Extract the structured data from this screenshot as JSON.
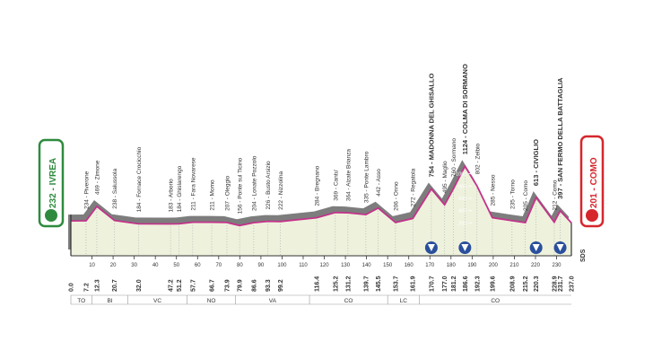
{
  "chart_data": {
    "type": "profile",
    "start_label": "232 - IVREA",
    "finish_label": "201 - COMO",
    "sds_label": "SDS",
    "x": [
      0,
      7.2,
      12.3,
      20.7,
      32,
      47.2,
      51.2,
      57.7,
      66.7,
      73.9,
      79.9,
      86.6,
      93.3,
      99.2,
      116.4,
      125.2,
      131.2,
      139.7,
      145.5,
      153.7,
      161.9,
      170.7,
      177,
      181.2,
      186.6,
      192.3,
      199.6,
      208.9,
      215.2,
      220.3,
      228.9,
      231.7,
      237
    ],
    "x_labels": [
      "0.0",
      "7.2",
      "12.3",
      "20.7",
      "32.0",
      "47.2",
      "51.2",
      "57.7",
      "66.7",
      "73.9",
      "79.9",
      "86.6",
      "93.3",
      "99.2",
      "116.4",
      "125.2",
      "131.2",
      "139.7",
      "145.5",
      "153.7",
      "161.9",
      "170.7",
      "177.0",
      "181.2",
      "186.6",
      "192.3",
      "199.6",
      "208.9",
      "215.2",
      "220.3",
      "228.9",
      "231.7",
      "237.0"
    ],
    "values": [
      232,
      234,
      469,
      238,
      184,
      183,
      184,
      211,
      211,
      207,
      156,
      204,
      226,
      222,
      284,
      369,
      364,
      335,
      442,
      206,
      272,
      754,
      495,
      760,
      1124,
      802,
      285,
      235,
      205,
      613,
      212,
      397,
      201
    ],
    "places": [
      null,
      "234 - Piverone",
      "469 - Zimone",
      "238 - Salussola",
      "184 - Fornace Crocicchio",
      "183 - Arborio",
      "184 - Ghislarengo",
      "211 - Fara Novarese",
      "211 - Momo",
      "207 - Oleggio",
      "156 - Ponte sul Ticino",
      "204 - Lonate Pozzolo",
      "226 - Busto Arsizio",
      "222 - Nizzolina",
      "284 - Bregnano",
      "369 - Cantu'",
      "364 - Alzate Brianza",
      "335 - Ponte Lambro",
      "442 - Asso",
      "206 - Onno",
      "272 - Regatola",
      "754 - MADONNA DEL GHISALLO",
      "495 - Maglio",
      "760 - Sormano",
      "1124 - COLMA DI SORMANO",
      "802 - Zelbio",
      "285 - Nesso",
      "235 - Torno",
      "205 - Como",
      "613 - CIVIGLIO",
      "212 - Como",
      "397 - SAN FERMO DELLA BATTAGLIA",
      null
    ],
    "gpm_km": [
      170.7,
      186.6,
      220.3,
      231.7
    ],
    "xlim": [
      0,
      237
    ],
    "xticks": [
      10,
      20,
      30,
      40,
      50,
      60,
      70,
      80,
      90,
      100,
      110,
      120,
      130,
      140,
      150,
      160,
      170,
      180,
      190,
      200,
      210,
      220,
      230
    ],
    "ylim": [
      0,
      1200
    ],
    "yticks": [
      200,
      400,
      600,
      800,
      1000
    ],
    "line_color": "#c2338a",
    "regions": [
      {
        "name": "TO",
        "start": 0,
        "end": 10
      },
      {
        "name": "BI",
        "start": 10,
        "end": 27
      },
      {
        "name": "VC",
        "start": 27,
        "end": 55
      },
      {
        "name": "NO",
        "start": 55,
        "end": 78
      },
      {
        "name": "VA",
        "start": 78,
        "end": 113
      },
      {
        "name": "CO",
        "start": 113,
        "end": 150
      },
      {
        "name": "LC",
        "start": 150,
        "end": 165
      },
      {
        "name": "CO",
        "start": 165,
        "end": 237
      }
    ]
  }
}
